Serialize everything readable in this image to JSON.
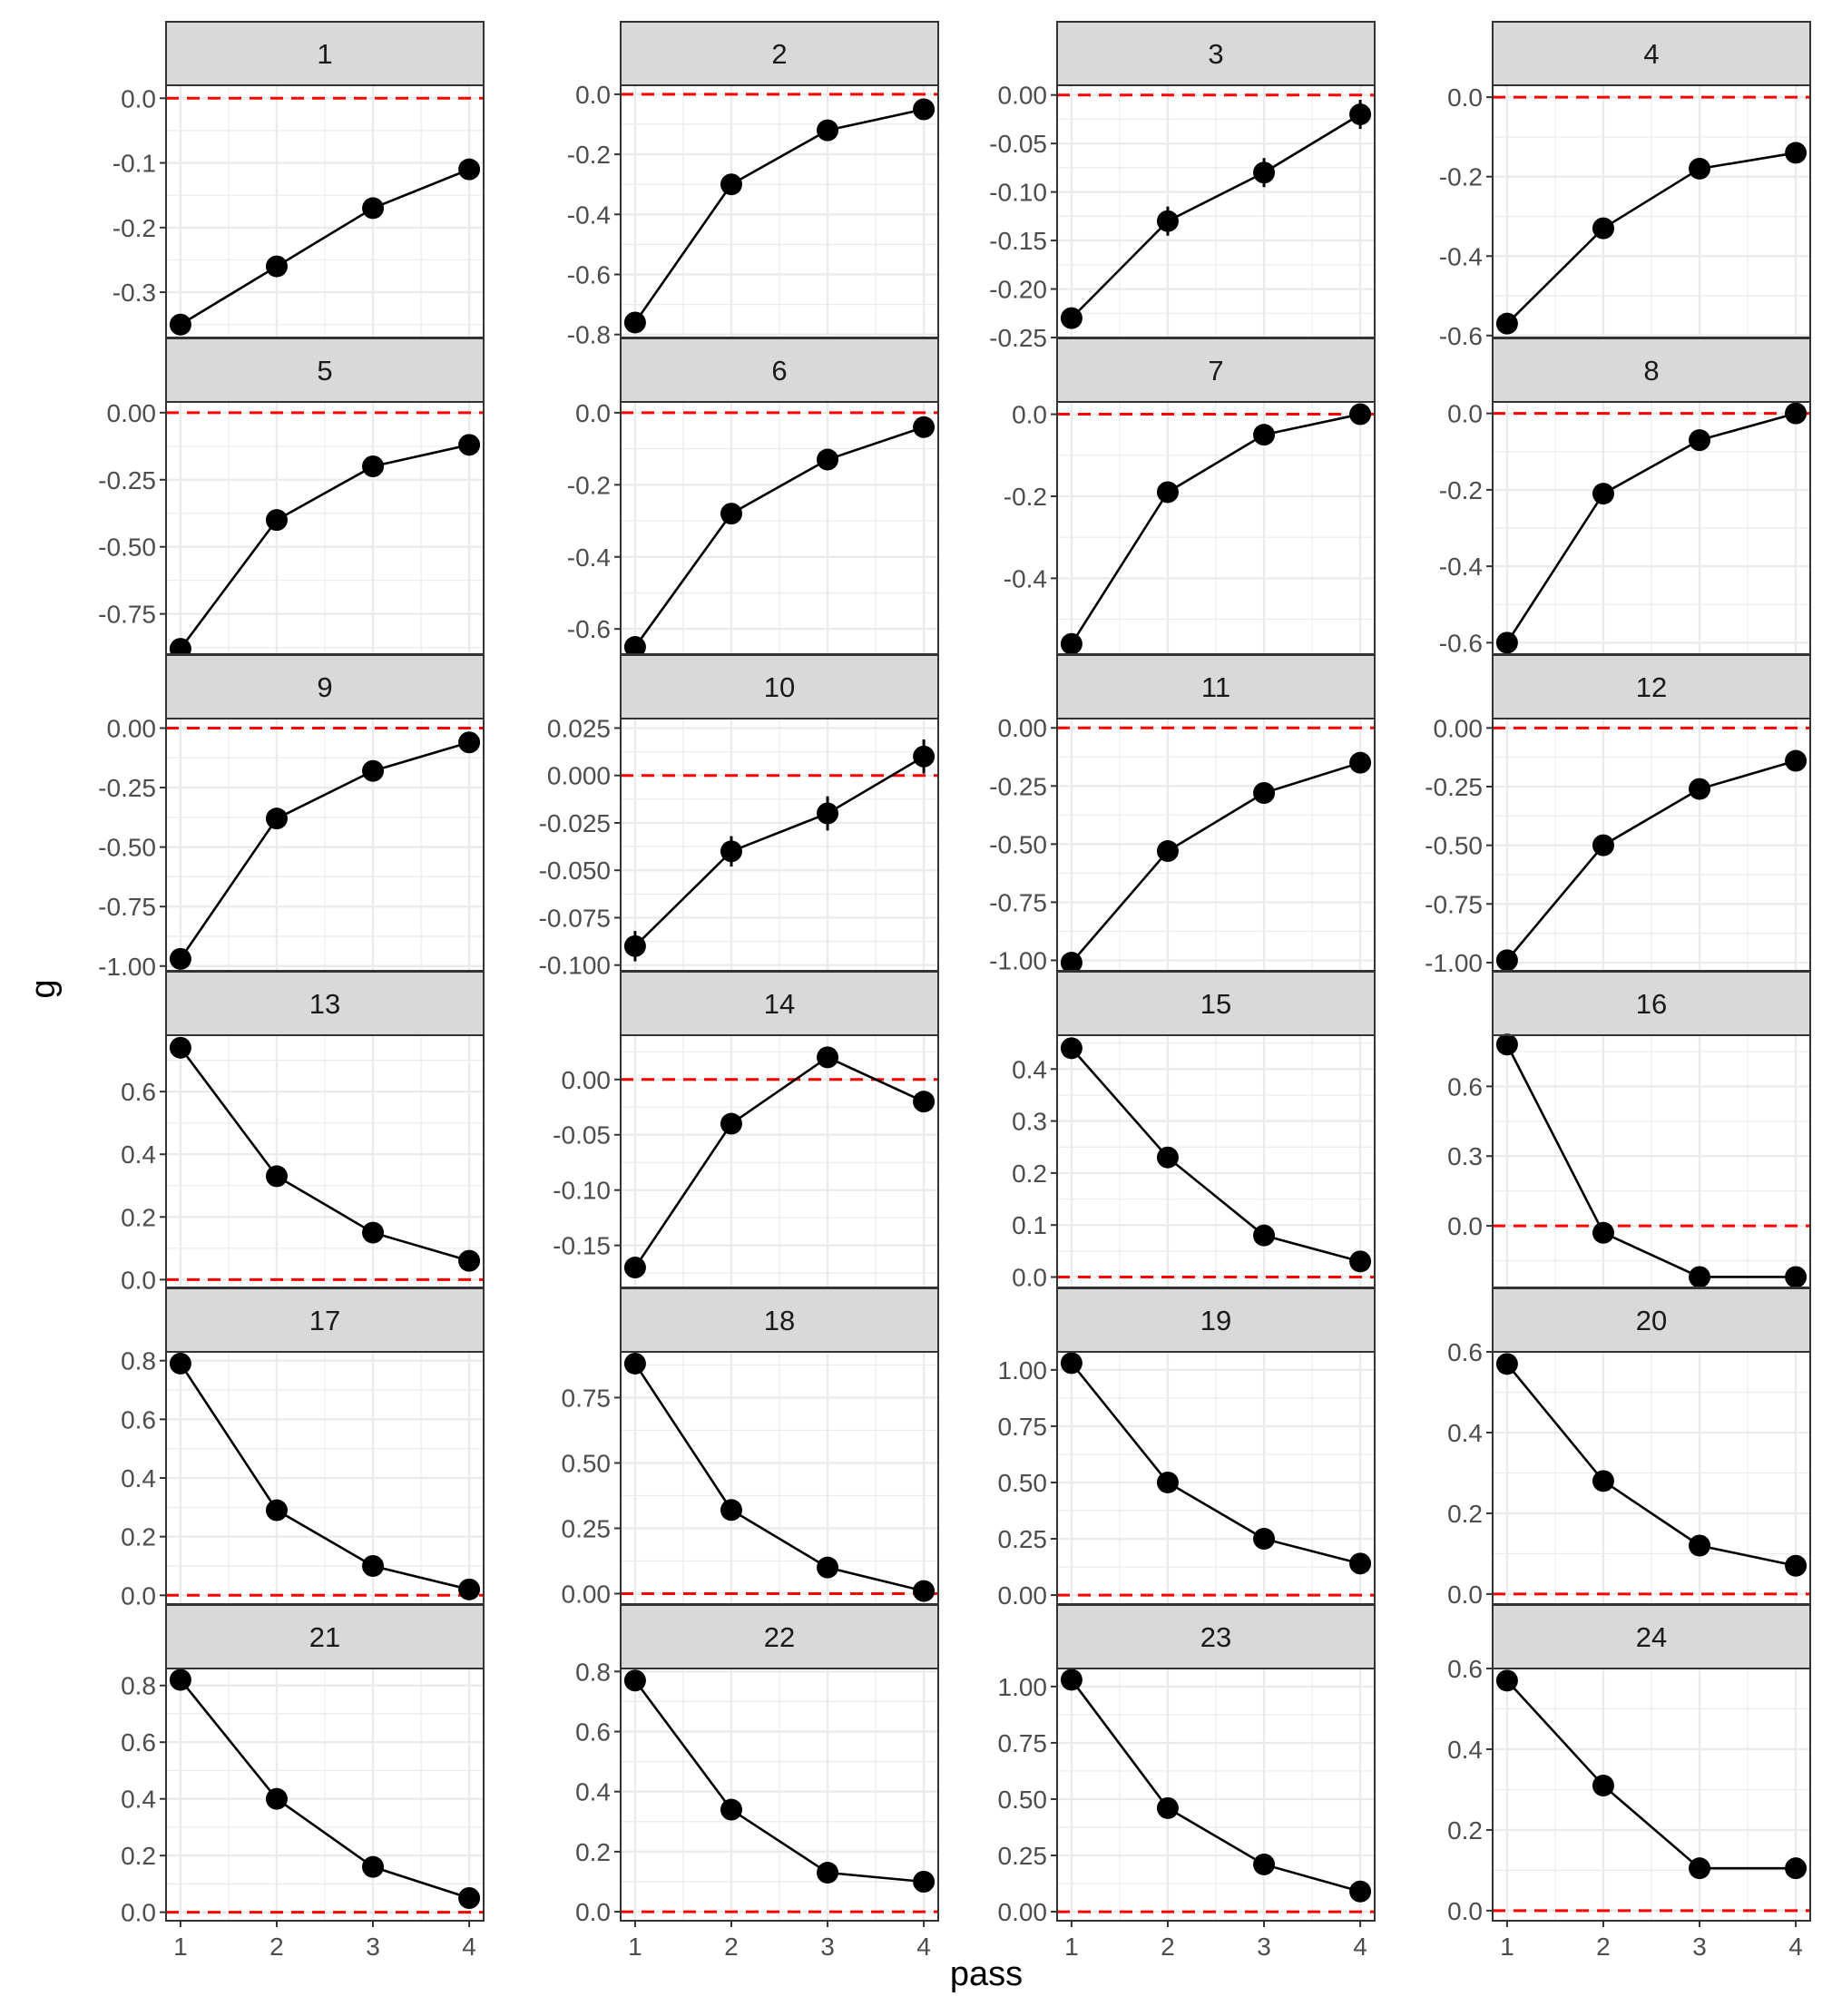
{
  "chart_data": {
    "type": "line",
    "facets_layout": "6 rows x 4 columns",
    "xlabel": "pass",
    "ylabel": "g",
    "x": [
      1,
      2,
      3,
      4
    ],
    "x_ticks": [
      1,
      2,
      3,
      4
    ],
    "xlim": [
      0.85,
      4.15
    ],
    "grid": true,
    "reference_line": {
      "y": 0,
      "color": "#ff0000",
      "style": "dashed"
    },
    "colors": {
      "series": "#000000",
      "reference": "#ff0000",
      "strip": "#d9d9d9",
      "grid": "#ebebeb"
    },
    "panels": [
      {
        "label": "1",
        "values": [
          -0.35,
          -0.26,
          -0.17,
          -0.11
        ],
        "ylim": [
          -0.37,
          0.02
        ],
        "ticks": [
          0.0,
          -0.1,
          -0.2,
          -0.3
        ],
        "tick_labels": [
          "0.0",
          "-0.1",
          "-0.2",
          "-0.3"
        ]
      },
      {
        "label": "2",
        "values": [
          -0.76,
          -0.3,
          -0.12,
          -0.05
        ],
        "ylim": [
          -0.81,
          0.03
        ],
        "ticks": [
          0.0,
          -0.2,
          -0.4,
          -0.6,
          -0.8
        ],
        "tick_labels": [
          "0.0",
          "-0.2",
          "-0.4",
          "-0.6",
          "-0.8"
        ],
        "errors": [
          0.02,
          0.01,
          0.01,
          0.01
        ]
      },
      {
        "label": "3",
        "values": [
          -0.23,
          -0.13,
          -0.08,
          -0.02
        ],
        "ylim": [
          -0.25,
          0.01
        ],
        "ticks": [
          0.0,
          -0.05,
          -0.1,
          -0.15,
          -0.2,
          -0.25
        ],
        "tick_labels": [
          "0.00",
          "-0.05",
          "-0.10",
          "-0.15",
          "-0.20",
          "-0.25"
        ],
        "errors": [
          0.005,
          0.015,
          0.015,
          0.015
        ]
      },
      {
        "label": "4",
        "values": [
          -0.57,
          -0.33,
          -0.18,
          -0.14
        ],
        "ylim": [
          -0.605,
          0.03
        ],
        "ticks": [
          0.0,
          -0.2,
          -0.4,
          -0.6
        ],
        "tick_labels": [
          "0.0",
          "-0.2",
          "-0.4",
          "-0.6"
        ]
      },
      {
        "label": "5",
        "values": [
          -0.88,
          -0.4,
          -0.2,
          -0.12
        ],
        "ylim": [
          -0.9,
          0.04
        ],
        "ticks": [
          0.0,
          -0.25,
          -0.5,
          -0.75
        ],
        "tick_labels": [
          "0.00",
          "-0.25",
          "-0.50",
          "-0.75"
        ]
      },
      {
        "label": "6",
        "values": [
          -0.65,
          -0.28,
          -0.13,
          -0.04
        ],
        "ylim": [
          -0.67,
          0.03
        ],
        "ticks": [
          0.0,
          -0.2,
          -0.4,
          -0.6
        ],
        "tick_labels": [
          "0.0",
          "-0.2",
          "-0.4",
          "-0.6"
        ]
      },
      {
        "label": "7",
        "values": [
          -0.56,
          -0.19,
          -0.05,
          0.0
        ],
        "ylim": [
          -0.585,
          0.03
        ],
        "ticks": [
          0.0,
          -0.2,
          -0.4
        ],
        "tick_labels": [
          "0.0",
          "-0.2",
          "-0.4"
        ],
        "errors": [
          0.01,
          0.01,
          0.01,
          0.02
        ]
      },
      {
        "label": "8",
        "values": [
          -0.6,
          -0.21,
          -0.07,
          0.0
        ],
        "ylim": [
          -0.63,
          0.03
        ],
        "ticks": [
          0.0,
          -0.2,
          -0.4,
          -0.6
        ],
        "tick_labels": [
          "0.0",
          "-0.2",
          "-0.4",
          "-0.6"
        ]
      },
      {
        "label": "9",
        "values": [
          -0.97,
          -0.38,
          -0.18,
          -0.06
        ],
        "ylim": [
          -1.02,
          0.04
        ],
        "ticks": [
          0.0,
          -0.25,
          -0.5,
          -0.75,
          -1.0
        ],
        "tick_labels": [
          "0.00",
          "-0.25",
          "-0.50",
          "-0.75",
          "-1.00"
        ]
      },
      {
        "label": "10",
        "values": [
          -0.09,
          -0.04,
          -0.02,
          0.01
        ],
        "ylim": [
          -0.103,
          0.03
        ],
        "ticks": [
          0.025,
          0.0,
          -0.025,
          -0.05,
          -0.075,
          -0.1
        ],
        "tick_labels": [
          "0.025",
          "0.000",
          "-0.025",
          "-0.050",
          "-0.075",
          "-0.100"
        ],
        "errors": [
          0.008,
          0.008,
          0.009,
          0.009
        ]
      },
      {
        "label": "11",
        "values": [
          -1.01,
          -0.53,
          -0.28,
          -0.15
        ],
        "ylim": [
          -1.045,
          0.04
        ],
        "ticks": [
          0.0,
          -0.25,
          -0.5,
          -0.75,
          -1.0
        ],
        "tick_labels": [
          "0.00",
          "-0.25",
          "-0.50",
          "-0.75",
          "-1.00"
        ]
      },
      {
        "label": "12",
        "values": [
          -0.99,
          -0.5,
          -0.26,
          -0.14
        ],
        "ylim": [
          -1.035,
          0.04
        ],
        "ticks": [
          0.0,
          -0.25,
          -0.5,
          -0.75,
          -1.0
        ],
        "tick_labels": [
          "0.00",
          "-0.25",
          "-0.50",
          "-0.75",
          "-1.00"
        ]
      },
      {
        "label": "13",
        "values": [
          0.74,
          0.33,
          0.15,
          0.06
        ],
        "ylim": [
          -0.025,
          0.78
        ],
        "ticks": [
          0.0,
          0.2,
          0.4,
          0.6
        ],
        "tick_labels": [
          "0.0",
          "0.2",
          "0.4",
          "0.6"
        ]
      },
      {
        "label": "14",
        "values": [
          -0.17,
          -0.04,
          0.02,
          -0.02
        ],
        "ylim": [
          -0.188,
          0.04
        ],
        "ticks": [
          0.0,
          -0.05,
          -0.1,
          -0.15
        ],
        "tick_labels": [
          "0.00",
          "-0.05",
          "-0.10",
          "-0.15"
        ]
      },
      {
        "label": "15",
        "values": [
          0.44,
          0.23,
          0.08,
          0.03
        ],
        "ylim": [
          -0.02,
          0.465
        ],
        "ticks": [
          0.0,
          0.1,
          0.2,
          0.3,
          0.4
        ],
        "tick_labels": [
          "0.0",
          "0.1",
          "0.2",
          "0.3",
          "0.4"
        ]
      },
      {
        "label": "16",
        "values": [
          0.78,
          -0.03,
          -0.22,
          -0.22
        ],
        "ylim": [
          -0.265,
          0.82
        ],
        "ticks": [
          0.0,
          0.3,
          0.6
        ],
        "tick_labels": [
          "0.0",
          "0.3",
          "0.6"
        ]
      },
      {
        "label": "17",
        "values": [
          0.79,
          0.29,
          0.1,
          0.02
        ],
        "ylim": [
          -0.03,
          0.83
        ],
        "ticks": [
          0.0,
          0.2,
          0.4,
          0.6,
          0.8
        ],
        "tick_labels": [
          "0.0",
          "0.2",
          "0.4",
          "0.6",
          "0.8"
        ]
      },
      {
        "label": "18",
        "values": [
          0.88,
          0.32,
          0.1,
          0.01
        ],
        "ylim": [
          -0.04,
          0.925
        ],
        "ticks": [
          0.0,
          0.25,
          0.5,
          0.75
        ],
        "tick_labels": [
          "0.00",
          "0.25",
          "0.50",
          "0.75"
        ]
      },
      {
        "label": "19",
        "values": [
          1.03,
          0.5,
          0.25,
          0.14
        ],
        "ylim": [
          -0.04,
          1.08
        ],
        "ticks": [
          0.0,
          0.25,
          0.5,
          0.75,
          1.0
        ],
        "tick_labels": [
          "0.00",
          "0.25",
          "0.50",
          "0.75",
          "1.00"
        ]
      },
      {
        "label": "20",
        "values": [
          0.57,
          0.28,
          0.12,
          0.07
        ],
        "ylim": [
          -0.025,
          0.6
        ],
        "ticks": [
          0.0,
          0.2,
          0.4,
          0.6
        ],
        "tick_labels": [
          "0.0",
          "0.2",
          "0.4",
          "0.6"
        ]
      },
      {
        "label": "21",
        "values": [
          0.82,
          0.4,
          0.16,
          0.05
        ],
        "ylim": [
          -0.03,
          0.86
        ],
        "ticks": [
          0.0,
          0.2,
          0.4,
          0.6,
          0.8
        ],
        "tick_labels": [
          "0.0",
          "0.2",
          "0.4",
          "0.6",
          "0.8"
        ]
      },
      {
        "label": "22",
        "values": [
          0.77,
          0.34,
          0.13,
          0.1
        ],
        "ylim": [
          -0.03,
          0.81
        ],
        "ticks": [
          0.0,
          0.2,
          0.4,
          0.6,
          0.8
        ],
        "tick_labels": [
          "0.0",
          "0.2",
          "0.4",
          "0.6",
          "0.8"
        ]
      },
      {
        "label": "23",
        "values": [
          1.03,
          0.46,
          0.21,
          0.09
        ],
        "ylim": [
          -0.04,
          1.08
        ],
        "ticks": [
          0.0,
          0.25,
          0.5,
          0.75,
          1.0
        ],
        "tick_labels": [
          "0.00",
          "0.25",
          "0.50",
          "0.75",
          "1.00"
        ]
      },
      {
        "label": "24",
        "values": [
          0.57,
          0.31,
          0.105,
          0.105
        ],
        "ylim": [
          -0.025,
          0.6
        ],
        "ticks": [
          0.0,
          0.2,
          0.4,
          0.6
        ],
        "tick_labels": [
          "0.0",
          "0.2",
          "0.4",
          "0.6"
        ]
      }
    ]
  }
}
